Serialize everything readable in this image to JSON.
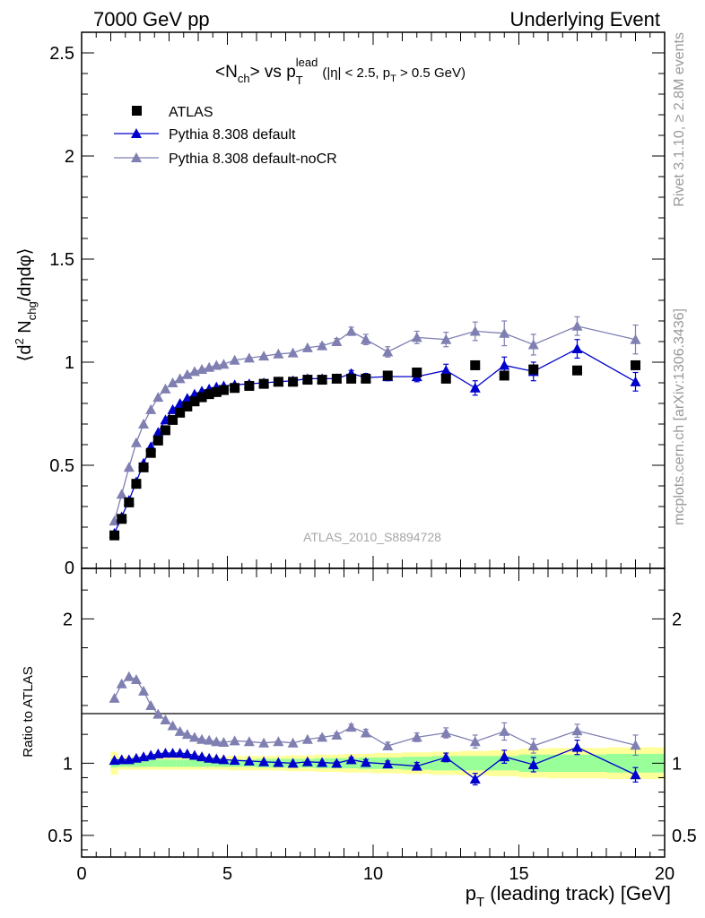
{
  "header": {
    "left": "7000 GeV pp",
    "right": "Underlying Event"
  },
  "side": {
    "top": "Rivet 3.1.10, ≥ 2.8M events",
    "bottom": "mcplots.cern.ch [arXiv:1306.3436]"
  },
  "plot_title": {
    "main_prefix": "<N",
    "main_sub": "ch",
    "main_mid": "> vs p",
    "main_sub2": "T",
    "main_sup": "lead",
    "cond1": "(|η| < 2.5, p",
    "cond_sub": "T",
    "cond2": " > 0.5 GeV)"
  },
  "watermark": "ATLAS_2010_S8894728",
  "ylabel_main": {
    "p1": "⟨d",
    "sup": "2",
    "p2": " N",
    "sub": "chg",
    "p3": "/dηdφ⟩"
  },
  "ylabel_ratio": "Ratio to ATLAS",
  "xlabel": {
    "p": "p",
    "sub": "T",
    "rest": " (leading track) [GeV]"
  },
  "colors": {
    "atlas": "#000000",
    "default": "#0000cc",
    "nocr": "#7f7fb2",
    "band_stat": "#99ff99",
    "band_total": "#ffff99"
  },
  "chart_data": [
    {
      "type": "scatter",
      "panel": "main",
      "xlim": [
        0,
        20
      ],
      "ylim": [
        0,
        2.6
      ],
      "yticks": [
        0.5,
        1,
        1.5,
        2,
        2.5
      ],
      "ytick_labels": [
        "0.5",
        "1",
        "1.5",
        "2",
        "2.5"
      ],
      "y_bottom_label": "0",
      "legend_placement": "top-left",
      "series": [
        {
          "name": "ATLAS",
          "marker": "square",
          "x": [
            1.125,
            1.375,
            1.625,
            1.875,
            2.125,
            2.375,
            2.625,
            2.875,
            3.125,
            3.375,
            3.625,
            3.875,
            4.125,
            4.375,
            4.625,
            4.875,
            5.25,
            5.75,
            6.25,
            6.75,
            7.25,
            7.75,
            8.25,
            8.75,
            9.25,
            9.75,
            10.5,
            11.5,
            12.5,
            13.5,
            14.5,
            15.5,
            17.0,
            19.0
          ],
          "y": [
            0.16,
            0.24,
            0.32,
            0.41,
            0.49,
            0.56,
            0.62,
            0.67,
            0.72,
            0.755,
            0.785,
            0.81,
            0.83,
            0.845,
            0.855,
            0.865,
            0.875,
            0.885,
            0.895,
            0.905,
            0.905,
            0.915,
            0.915,
            0.92,
            0.92,
            0.92,
            0.935,
            0.95,
            0.92,
            0.985,
            0.935,
            0.965,
            0.96,
            0.985
          ]
        },
        {
          "name": "Pythia 8.308 default",
          "marker": "triangle",
          "x": [
            1.125,
            1.375,
            1.625,
            1.875,
            2.125,
            2.375,
            2.625,
            2.875,
            3.125,
            3.375,
            3.625,
            3.875,
            4.125,
            4.375,
            4.625,
            4.875,
            5.25,
            5.75,
            6.25,
            6.75,
            7.25,
            7.75,
            8.25,
            8.75,
            9.25,
            9.75,
            10.5,
            11.5,
            12.5,
            13.5,
            14.5,
            15.5,
            17.0,
            19.0
          ],
          "y": [
            0.17,
            0.25,
            0.33,
            0.42,
            0.51,
            0.59,
            0.66,
            0.72,
            0.77,
            0.8,
            0.825,
            0.845,
            0.86,
            0.87,
            0.88,
            0.885,
            0.89,
            0.895,
            0.9,
            0.905,
            0.91,
            0.92,
            0.92,
            0.92,
            0.945,
            0.925,
            0.93,
            0.93,
            0.96,
            0.875,
            0.985,
            0.955,
            1.065,
            0.905
          ],
          "yerr": [
            0,
            0,
            0,
            0,
            0,
            0,
            0,
            0,
            0,
            0,
            0,
            0,
            0,
            0,
            0,
            0,
            0,
            0,
            0,
            0,
            0,
            0,
            0,
            0.01,
            0.015,
            0.02,
            0.02,
            0.025,
            0.03,
            0.035,
            0.04,
            0.045,
            0.045,
            0.045
          ]
        },
        {
          "name": "Pythia 8.308 default-noCR",
          "marker": "triangle",
          "x": [
            1.125,
            1.375,
            1.625,
            1.875,
            2.125,
            2.375,
            2.625,
            2.875,
            3.125,
            3.375,
            3.625,
            3.875,
            4.125,
            4.375,
            4.625,
            4.875,
            5.25,
            5.75,
            6.25,
            6.75,
            7.25,
            7.75,
            8.25,
            8.75,
            9.25,
            9.75,
            10.5,
            11.5,
            12.5,
            13.5,
            14.5,
            15.5,
            17.0,
            19.0
          ],
          "y": [
            0.23,
            0.36,
            0.49,
            0.61,
            0.7,
            0.77,
            0.83,
            0.87,
            0.9,
            0.92,
            0.94,
            0.955,
            0.965,
            0.975,
            0.985,
            0.99,
            1.01,
            1.02,
            1.03,
            1.04,
            1.045,
            1.07,
            1.08,
            1.1,
            1.15,
            1.11,
            1.05,
            1.12,
            1.11,
            1.15,
            1.14,
            1.085,
            1.175,
            1.11
          ],
          "yerr": [
            0,
            0,
            0,
            0,
            0,
            0,
            0,
            0,
            0,
            0,
            0,
            0,
            0,
            0,
            0,
            0,
            0,
            0,
            0,
            0,
            0,
            0,
            0.01,
            0.015,
            0.02,
            0.025,
            0.025,
            0.03,
            0.035,
            0.045,
            0.06,
            0.05,
            0.045,
            0.07
          ]
        }
      ]
    },
    {
      "type": "scatter",
      "panel": "ratio",
      "xlim": [
        0,
        20
      ],
      "ylim": [
        0.35,
        2.35
      ],
      "xticks": [
        0,
        5,
        10,
        15,
        20
      ],
      "xtick_labels": [
        "0",
        "5",
        "10",
        "15",
        "20"
      ],
      "yticks": [
        0.5,
        1,
        2
      ],
      "ytick_labels": [
        "0.5",
        "1",
        "2"
      ],
      "band_edges": [
        1.0,
        1.25,
        1.5,
        1.75,
        2.0,
        2.25,
        2.5,
        2.75,
        3.0,
        3.25,
        3.5,
        3.75,
        4.0,
        4.25,
        4.5,
        4.75,
        5.0,
        5.5,
        6.0,
        6.5,
        7.0,
        7.5,
        8.0,
        8.5,
        9.0,
        9.5,
        10.0,
        11.0,
        12.0,
        13.0,
        14.0,
        15.0,
        16.0,
        18.0,
        20.0
      ],
      "band_stat": [
        0.03,
        0.025,
        0.025,
        0.025,
        0.025,
        0.025,
        0.025,
        0.025,
        0.025,
        0.025,
        0.025,
        0.025,
        0.025,
        0.025,
        0.025,
        0.025,
        0.025,
        0.025,
        0.03,
        0.03,
        0.03,
        0.03,
        0.035,
        0.035,
        0.035,
        0.04,
        0.04,
        0.045,
        0.05,
        0.05,
        0.05,
        0.06,
        0.06,
        0.065
      ],
      "band_total": [
        0.08,
        0.045,
        0.045,
        0.045,
        0.045,
        0.045,
        0.045,
        0.045,
        0.045,
        0.045,
        0.045,
        0.045,
        0.045,
        0.045,
        0.045,
        0.045,
        0.05,
        0.05,
        0.05,
        0.05,
        0.055,
        0.055,
        0.06,
        0.06,
        0.065,
        0.065,
        0.07,
        0.075,
        0.08,
        0.085,
        0.09,
        0.1,
        0.105,
        0.11
      ],
      "series": [
        {
          "name": "Pythia 8.308 default",
          "x": [
            1.125,
            1.375,
            1.625,
            1.875,
            2.125,
            2.375,
            2.625,
            2.875,
            3.125,
            3.375,
            3.625,
            3.875,
            4.125,
            4.375,
            4.625,
            4.875,
            5.25,
            5.75,
            6.25,
            6.75,
            7.25,
            7.75,
            8.25,
            8.75,
            9.25,
            9.75,
            10.5,
            11.5,
            12.5,
            13.5,
            14.5,
            15.5,
            17.0,
            19.0
          ],
          "y": [
            1.02,
            1.025,
            1.025,
            1.035,
            1.045,
            1.055,
            1.065,
            1.07,
            1.07,
            1.07,
            1.065,
            1.055,
            1.045,
            1.035,
            1.03,
            1.025,
            1.02,
            1.015,
            1.01,
            1.005,
            1.0,
            1.01,
            1.005,
            1.0,
            1.025,
            1.005,
            0.995,
            0.98,
            1.04,
            0.89,
            1.045,
            0.99,
            1.11,
            0.92
          ],
          "yerr": [
            0,
            0,
            0,
            0,
            0,
            0,
            0,
            0,
            0,
            0,
            0,
            0,
            0,
            0,
            0,
            0,
            0,
            0,
            0,
            0,
            0,
            0,
            0,
            0.01,
            0.015,
            0.02,
            0.02,
            0.025,
            0.03,
            0.04,
            0.045,
            0.05,
            0.05,
            0.05
          ]
        },
        {
          "name": "Pythia 8.308 default-noCR",
          "x": [
            1.125,
            1.375,
            1.625,
            1.875,
            2.125,
            2.375,
            2.625,
            2.875,
            3.125,
            3.375,
            3.625,
            3.875,
            4.125,
            4.375,
            4.625,
            4.875,
            5.25,
            5.75,
            6.25,
            6.75,
            7.25,
            7.75,
            8.25,
            8.75,
            9.25,
            9.75,
            10.5,
            11.5,
            12.5,
            13.5,
            14.5,
            15.5,
            17.0,
            19.0
          ],
          "y": [
            1.45,
            1.55,
            1.6,
            1.58,
            1.5,
            1.4,
            1.34,
            1.3,
            1.26,
            1.22,
            1.2,
            1.18,
            1.165,
            1.16,
            1.15,
            1.145,
            1.155,
            1.15,
            1.14,
            1.15,
            1.14,
            1.165,
            1.18,
            1.195,
            1.25,
            1.21,
            1.12,
            1.18,
            1.21,
            1.15,
            1.22,
            1.12,
            1.225,
            1.125
          ],
          "yerr": [
            0,
            0,
            0,
            0,
            0,
            0,
            0,
            0,
            0,
            0,
            0,
            0,
            0,
            0,
            0,
            0,
            0,
            0,
            0,
            0,
            0,
            0,
            0.01,
            0.015,
            0.02,
            0.025,
            0.025,
            0.03,
            0.035,
            0.045,
            0.06,
            0.05,
            0.045,
            0.07
          ]
        }
      ]
    }
  ]
}
